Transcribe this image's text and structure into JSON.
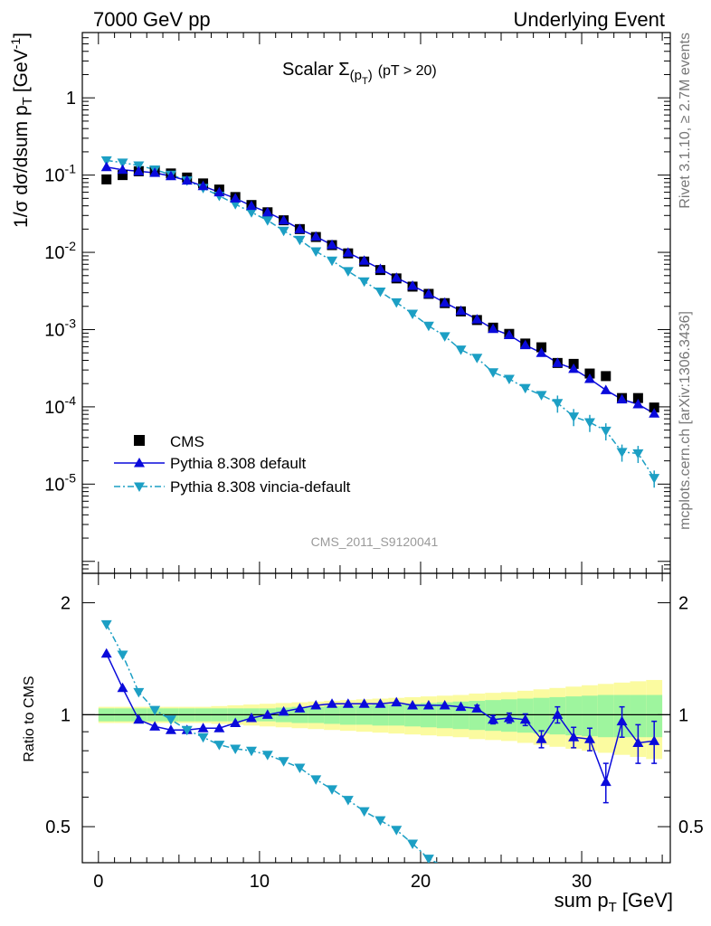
{
  "header": {
    "left": "7000 GeV pp",
    "right": "Underlying Event",
    "side_top": "Rivet 3.1.10, ≥ 2.7M events",
    "side_bottom": "mcplots.cern.ch [arXiv:1306.3436]",
    "watermark": "CMS_2011_S9120041"
  },
  "plot_title": {
    "main": "Scalar Σ",
    "sub": "(p",
    "subsub": "T",
    "close": ")",
    "cut": "(pT > 20)"
  },
  "axes": {
    "main_ylabel": "1/σ dσ/dsum p",
    "main_ylabel_sub": "T",
    "main_ylabel_unit": "[GeV",
    "main_ylabel_unit_sup": "-1",
    "main_ylabel_close": "]",
    "ratio_ylabel": "Ratio to CMS",
    "xlabel": "sum p",
    "xlabel_sub": "T",
    "xlabel_unit": "[GeV]",
    "x_ticks": [
      "0",
      "10",
      "20",
      "30"
    ],
    "main_y_ticks": [
      {
        "base": "1",
        "exp": ""
      },
      {
        "base": "10",
        "exp": "-1"
      },
      {
        "base": "10",
        "exp": "-2"
      },
      {
        "base": "10",
        "exp": "-3"
      },
      {
        "base": "10",
        "exp": "-4"
      },
      {
        "base": "10",
        "exp": "-5"
      }
    ],
    "ratio_y_ticks": [
      "2",
      "1",
      "0.5"
    ]
  },
  "legend": {
    "cms": "CMS",
    "default": "Pythia 8.308 default",
    "vincia": "Pythia 8.308 vincia-default"
  },
  "colors": {
    "cms": "#000000",
    "default": "#0a0adb",
    "vincia": "#1c9fc4",
    "band_inner": "#9ef59e",
    "band_outer": "#fbfba0"
  },
  "chart_data": {
    "type": "line",
    "x_scale": "linear",
    "main_y_scale": "log",
    "ratio_y_scale": "log",
    "xlim": [
      -1,
      35.5
    ],
    "main_ylim": [
      7e-07,
      7
    ],
    "ratio_ylim": [
      0.4,
      2.4
    ],
    "x": [
      0.5,
      1.5,
      2.5,
      3.5,
      4.5,
      5.5,
      6.5,
      7.5,
      8.5,
      9.5,
      10.5,
      11.5,
      12.5,
      13.5,
      14.5,
      15.5,
      16.5,
      17.5,
      18.5,
      19.5,
      20.5,
      21.5,
      22.5,
      23.5,
      24.5,
      25.5,
      26.5,
      27.5,
      28.5,
      29.5,
      30.5,
      31.5,
      32.5,
      33.5,
      34.5
    ],
    "series": [
      {
        "name": "CMS",
        "values": [
          0.088,
          0.1,
          0.112,
          0.114,
          0.105,
          0.093,
          0.078,
          0.065,
          0.052,
          0.041,
          0.033,
          0.026,
          0.02,
          0.0158,
          0.0124,
          0.0097,
          0.0076,
          0.0059,
          0.0046,
          0.0036,
          0.0029,
          0.0022,
          0.00172,
          0.00133,
          0.00106,
          0.00088,
          0.00066,
          0.00059,
          0.00037,
          0.00036,
          0.00027,
          0.00025,
          0.00013,
          0.00013,
          9.8e-05
        ],
        "band_inner": [
          0.04,
          0.04,
          0.04,
          0.04,
          0.04,
          0.04,
          0.04,
          0.04,
          0.04,
          0.04,
          0.04,
          0.045,
          0.05,
          0.05,
          0.055,
          0.06,
          0.06,
          0.065,
          0.065,
          0.07,
          0.075,
          0.08,
          0.085,
          0.09,
          0.095,
          0.1,
          0.105,
          0.11,
          0.115,
          0.12,
          0.125,
          0.13,
          0.13,
          0.13,
          0.13
        ],
        "band_outer": [
          0.05,
          0.05,
          0.05,
          0.05,
          0.05,
          0.05,
          0.05,
          0.055,
          0.06,
          0.065,
          0.07,
          0.075,
          0.08,
          0.085,
          0.09,
          0.095,
          0.1,
          0.105,
          0.11,
          0.115,
          0.12,
          0.125,
          0.13,
          0.14,
          0.145,
          0.15,
          0.16,
          0.17,
          0.18,
          0.19,
          0.2,
          0.21,
          0.22,
          0.23,
          0.24
        ]
      },
      {
        "name": "Pythia 8.308 default",
        "values": [
          0.127,
          0.117,
          0.112,
          0.107,
          0.097,
          0.085,
          0.072,
          0.06,
          0.05,
          0.04,
          0.033,
          0.026,
          0.02,
          0.016,
          0.0125,
          0.0099,
          0.0078,
          0.0061,
          0.0047,
          0.0037,
          0.0029,
          0.00223,
          0.00175,
          0.00136,
          0.00102,
          0.00085,
          0.00063,
          0.0005,
          0.00037,
          0.00031,
          0.00023,
          0.000165,
          0.000125,
          0.000108,
          8.2e-05
        ],
        "ratio": [
          1.46,
          1.18,
          0.97,
          0.93,
          0.91,
          0.91,
          0.92,
          0.92,
          0.95,
          0.98,
          1.0,
          1.02,
          1.04,
          1.06,
          1.07,
          1.07,
          1.07,
          1.07,
          1.08,
          1.06,
          1.06,
          1.06,
          1.05,
          1.04,
          0.97,
          0.98,
          0.97,
          0.86,
          1.0,
          0.87,
          0.86,
          0.66,
          0.96,
          0.84,
          0.85
        ],
        "ratio_err": [
          0.01,
          0.01,
          0.01,
          0.01,
          0.01,
          0.01,
          0.01,
          0.01,
          0.01,
          0.01,
          0.01,
          0.01,
          0.01,
          0.01,
          0.01,
          0.01,
          0.01,
          0.01,
          0.01,
          0.01,
          0.01,
          0.012,
          0.015,
          0.02,
          0.025,
          0.03,
          0.035,
          0.045,
          0.05,
          0.055,
          0.06,
          0.08,
          0.09,
          0.1,
          0.11
        ]
      },
      {
        "name": "Pythia 8.308 vincia-default",
        "values": [
          0.155,
          0.145,
          0.133,
          0.118,
          0.101,
          0.085,
          0.068,
          0.054,
          0.042,
          0.033,
          0.026,
          0.019,
          0.0145,
          0.0103,
          0.0078,
          0.0057,
          0.0042,
          0.0031,
          0.00225,
          0.0016,
          0.00112,
          0.00082,
          0.00055,
          0.00043,
          0.00028,
          0.00023,
          0.000175,
          0.000142,
          0.000112,
          7.5e-05,
          6.3e-05,
          4.9e-05,
          2.6e-05,
          2.5e-05,
          1.2e-05
        ],
        "ratio": [
          1.75,
          1.45,
          1.15,
          1.03,
          0.97,
          0.91,
          0.87,
          0.83,
          0.81,
          0.8,
          0.78,
          0.75,
          0.72,
          0.67,
          0.63,
          0.59,
          0.55,
          0.52,
          0.49,
          0.45,
          0.41,
          0.39,
          0.34,
          0.37
        ],
        "ratio_err": [
          0.01,
          0.01,
          0.01,
          0.01,
          0.01,
          0.01,
          0.01,
          0.01,
          0.01,
          0.01,
          0.01,
          0.01,
          0.01,
          0.01,
          0.01,
          0.01,
          0.01,
          0.01,
          0.015,
          0.015,
          0.02,
          0.02,
          0.025,
          0.03
        ]
      }
    ]
  }
}
